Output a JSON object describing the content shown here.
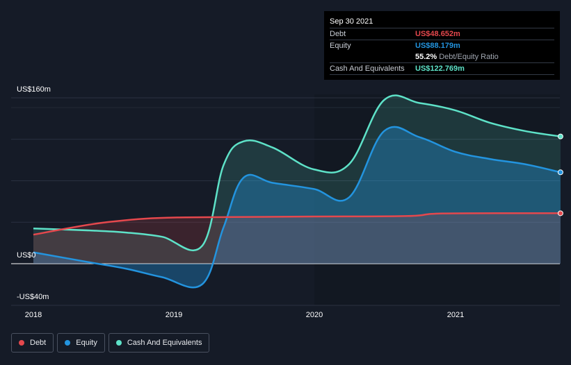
{
  "chart_data": {
    "type": "area",
    "x_ticks": [
      "2018",
      "2019",
      "2020",
      "2021"
    ],
    "y_ticks": [
      "US$160m",
      "US$0",
      "-US$40m"
    ],
    "ylim": [
      -40,
      160
    ],
    "grid": true,
    "legend_position": "bottom-left",
    "series": [
      {
        "name": "Debt",
        "color": "#e5484d",
        "points": [
          [
            "2018-01-01",
            28
          ],
          [
            "2018-06-01",
            38
          ],
          [
            "2018-10-01",
            43
          ],
          [
            "2019-01-01",
            44.5
          ],
          [
            "2019-06-01",
            45
          ],
          [
            "2020-01-01",
            45.5
          ],
          [
            "2020-09-01",
            46
          ],
          [
            "2020-12-01",
            48.5
          ],
          [
            "2021-09-30",
            48.652
          ]
        ]
      },
      {
        "name": "Equity",
        "color": "#2394df",
        "points": [
          [
            "2018-01-01",
            11
          ],
          [
            "2018-06-01",
            1
          ],
          [
            "2018-09-01",
            -5
          ],
          [
            "2018-12-01",
            -13
          ],
          [
            "2019-03-15",
            -20
          ],
          [
            "2019-05-10",
            35
          ],
          [
            "2019-07-01",
            83
          ],
          [
            "2019-09-15",
            78
          ],
          [
            "2019-12-31",
            72
          ],
          [
            "2020-03-31",
            64
          ],
          [
            "2020-06-30",
            128
          ],
          [
            "2020-09-30",
            122
          ],
          [
            "2020-12-31",
            108
          ],
          [
            "2021-03-31",
            101
          ],
          [
            "2021-06-30",
            96
          ],
          [
            "2021-09-30",
            88.179
          ]
        ]
      },
      {
        "name": "Cash And Equivalents",
        "color": "#5ee2c8",
        "points": [
          [
            "2018-01-01",
            34
          ],
          [
            "2018-06-01",
            32
          ],
          [
            "2018-09-01",
            30
          ],
          [
            "2018-12-01",
            26
          ],
          [
            "2019-03-15",
            17
          ],
          [
            "2019-05-10",
            95
          ],
          [
            "2019-07-01",
            118
          ],
          [
            "2019-09-15",
            112
          ],
          [
            "2019-12-31",
            91
          ],
          [
            "2020-03-31",
            96
          ],
          [
            "2020-06-30",
            158
          ],
          [
            "2020-09-30",
            155
          ],
          [
            "2020-12-31",
            148
          ],
          [
            "2021-03-31",
            136
          ],
          [
            "2021-06-30",
            128
          ],
          [
            "2021-09-30",
            122.769
          ]
        ]
      }
    ]
  },
  "tooltip": {
    "date": "Sep 30 2021",
    "debt_label": "Debt",
    "debt_value": "US$48.652m",
    "equity_label": "Equity",
    "equity_value": "US$88.179m",
    "ratio_value": "55.2%",
    "ratio_text": "Debt/Equity Ratio",
    "cash_label": "Cash And Equivalents",
    "cash_value": "US$122.769m"
  },
  "legend": [
    {
      "label": "Debt",
      "color": "#e5484d"
    },
    {
      "label": "Equity",
      "color": "#2394df"
    },
    {
      "label": "Cash And Equivalents",
      "color": "#5ee2c8"
    }
  ],
  "colors": {
    "background": "#151b27",
    "shaded_region": "#1b222f",
    "debt": "#e5484d",
    "equity": "#2394df",
    "cash": "#5ee2c8"
  }
}
